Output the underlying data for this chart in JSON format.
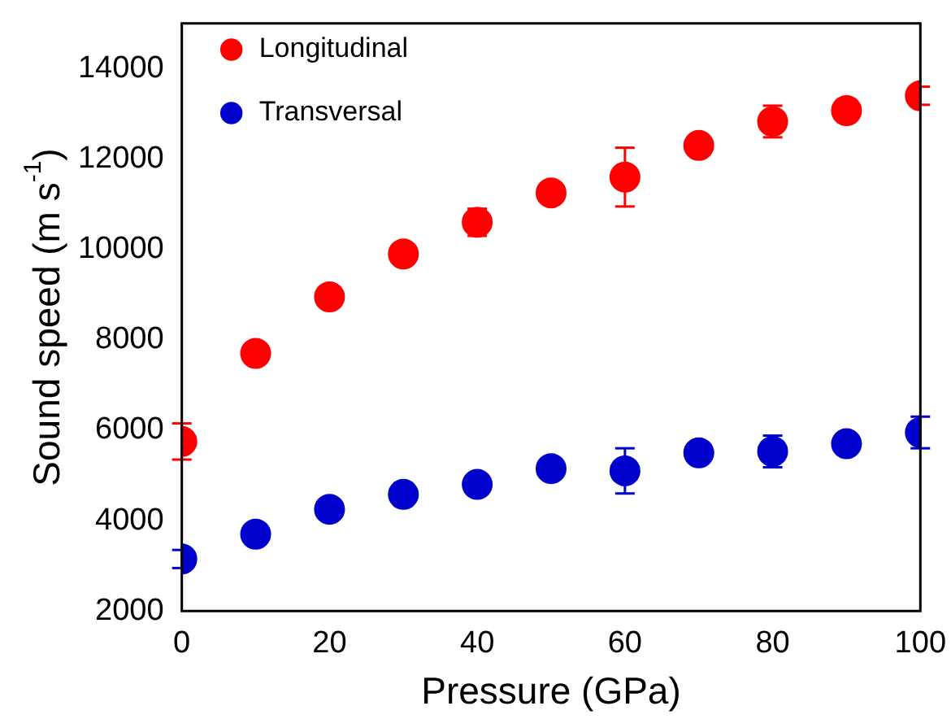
{
  "chart_data": {
    "type": "scatter",
    "xlabel": "Pressure (GPa)",
    "ylabel": "Sound speed (m s$^{-1}$)",
    "x": [
      0,
      10,
      20,
      30,
      40,
      50,
      60,
      70,
      80,
      90,
      100
    ],
    "series": [
      {
        "name": "Longitudinal",
        "color": "#ff0000",
        "values": [
          5750,
          7700,
          8950,
          9900,
          10600,
          11250,
          11600,
          12300,
          12830,
          13070,
          13400
        ],
        "errors": [
          400,
          150,
          150,
          150,
          300,
          200,
          650,
          150,
          350,
          250,
          200
        ]
      },
      {
        "name": "Transversal",
        "color": "#0000cc",
        "values": [
          3150,
          3700,
          4250,
          4580,
          4800,
          5150,
          5100,
          5500,
          5530,
          5700,
          5950
        ],
        "errors": [
          200,
          120,
          200,
          250,
          150,
          200,
          500,
          200,
          350,
          200,
          350
        ]
      }
    ],
    "xlim": [
      0,
      100
    ],
    "xticks": [
      0,
      20,
      40,
      60,
      80,
      100
    ],
    "ylim": [
      2000,
      15000
    ],
    "yticks": [
      2000,
      4000,
      6000,
      8000,
      10000,
      12000,
      14000
    ],
    "grid": false,
    "legend": "top left",
    "marker": "circle"
  }
}
